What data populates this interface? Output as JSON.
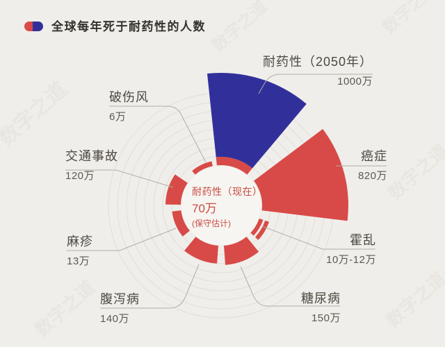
{
  "title": {
    "text": "全球每年死于耐药性的人数"
  },
  "watermark": {
    "text": "数字之道"
  },
  "colors": {
    "red": "#d84a47",
    "blue": "#31309b",
    "background": "#f0eeea"
  },
  "chart_data": {
    "type": "polar-rose",
    "title": "全球每年死于耐药性的人数",
    "unit": "万人/年",
    "center_label": {
      "line1": "耐药性（现在）",
      "line2": "70万",
      "line3": "(保守估计)"
    },
    "center_value": 70,
    "series": [
      {
        "name": "耐药性（2050年）",
        "value_label": "1000万",
        "value": 1000,
        "color": "#31309b"
      },
      {
        "name": "癌症",
        "value_label": "820万",
        "value": 820,
        "color": "#d84a47"
      },
      {
        "name": "霍乱",
        "value_label": "10万-12万",
        "value_min": 10,
        "value_max": 12,
        "color": "#d84a47"
      },
      {
        "name": "糖尿病",
        "value_label": "150万",
        "value": 150,
        "color": "#d84a47"
      },
      {
        "name": "腹泻病",
        "value_label": "140万",
        "value": 140,
        "color": "#d84a47"
      },
      {
        "name": "麻疹",
        "value_label": "13万",
        "value": 13,
        "color": "#d84a47"
      },
      {
        "name": "交通事故",
        "value_label": "120万",
        "value": 120,
        "color": "#d84a47"
      },
      {
        "name": "破伤风",
        "value_label": "6万",
        "value": 6,
        "color": "#d84a47"
      }
    ],
    "plot": {
      "center": [
        318,
        296
      ],
      "inner_radius": 57,
      "gridline_radii": [
        71,
        84,
        97,
        110,
        123,
        136,
        149,
        162
      ],
      "sectors": [
        {
          "key": "resistance-now-ring",
          "color": "#d84a47",
          "a0": -6,
          "a1": 40,
          "bands": [
            [
              58,
              70
            ]
          ]
        },
        {
          "key": "resistance-2050",
          "color": "#31309b",
          "a0": -6,
          "a1": 40,
          "bands": [
            [
              70,
              191
            ]
          ]
        },
        {
          "key": "cancer",
          "color": "#d84a47",
          "a0": 53,
          "a1": 97,
          "bands": [
            [
              59,
              183
            ]
          ]
        },
        {
          "key": "cholera",
          "color": "#d84a47",
          "a0": 109,
          "a1": 133,
          "bands": [
            [
              58,
              64
            ],
            [
              67,
              73
            ]
          ]
        },
        {
          "key": "diabetes",
          "color": "#d84a47",
          "a0": 141,
          "a1": 176,
          "bands": [
            [
              58,
              86
            ]
          ]
        },
        {
          "key": "diarrhea",
          "color": "#d84a47",
          "a0": 184,
          "a1": 219,
          "bands": [
            [
              58,
              84
            ]
          ]
        },
        {
          "key": "measles",
          "color": "#d84a47",
          "a0": 231,
          "a1": 263,
          "bands": [
            [
              58,
              71
            ]
          ]
        },
        {
          "key": "traffic",
          "color": "#d84a47",
          "a0": 271,
          "a1": 304,
          "bands": [
            [
              58,
              80
            ]
          ]
        },
        {
          "key": "tetanus",
          "color": "#d84a47",
          "a0": 320,
          "a1": 348,
          "bands": [
            [
              58,
              65
            ]
          ]
        }
      ]
    }
  }
}
